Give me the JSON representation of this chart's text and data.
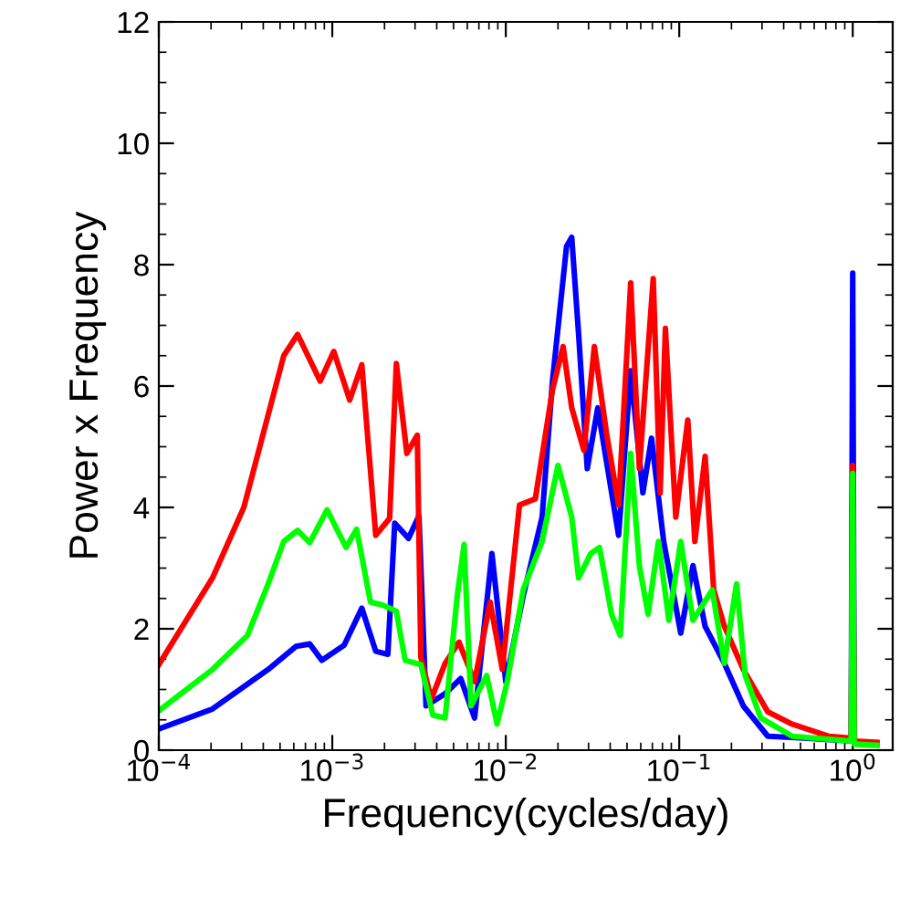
{
  "chart_data": {
    "type": "line",
    "xlabel": "Frequency(cycles/day)",
    "ylabel": "Power x Frequency",
    "log": "x",
    "xlim": [
      0.0001,
      1.7
    ],
    "ylim": [
      0,
      12
    ],
    "xticks": [
      {
        "value": 0.0001,
        "label": "10$^{−4}$"
      },
      {
        "value": 0.001,
        "label": "10$^{−3}$"
      },
      {
        "value": 0.01,
        "label": "10$^{−2}$"
      },
      {
        "value": 0.1,
        "label": "10$^{−1}$"
      },
      {
        "value": 1,
        "label": "10$^{0}$"
      }
    ],
    "yticks": [
      0,
      2,
      4,
      6,
      8,
      10,
      12
    ],
    "grid": false,
    "line_style": "solid",
    "marker": "none",
    "series": [
      {
        "color": "#0000ff",
        "x": [
          0.0001,
          0.000204,
          0.000427,
          0.000617,
          0.000741,
          0.000871,
          0.00117,
          0.00148,
          0.00178,
          0.00209,
          0.00229,
          0.00275,
          0.00316,
          0.00347,
          0.00447,
          0.0055,
          0.00661,
          0.00832,
          0.01,
          0.0126,
          0.0162,
          0.0186,
          0.0224,
          0.024,
          0.0263,
          0.0295,
          0.0339,
          0.0447,
          0.0525,
          0.0617,
          0.0692,
          0.0813,
          0.102,
          0.12,
          0.141,
          0.182,
          0.234,
          0.324,
          0.525,
          0.98,
          1.0,
          1.02,
          1.38
        ],
        "values": [
          0.35,
          0.68,
          1.33,
          1.71,
          1.75,
          1.48,
          1.73,
          2.34,
          1.63,
          1.58,
          3.74,
          3.49,
          3.86,
          0.73,
          0.93,
          1.18,
          0.53,
          3.24,
          1.13,
          2.54,
          3.84,
          6.09,
          8.3,
          8.45,
          6.85,
          4.64,
          5.64,
          3.54,
          6.25,
          4.24,
          5.14,
          3.44,
          1.93,
          3.04,
          2.04,
          1.43,
          0.73,
          0.23,
          0.2,
          0.15,
          7.86,
          0.12,
          0.1
        ]
      },
      {
        "color": "#ff0000",
        "x": [
          0.0001,
          0.000204,
          0.000309,
          0.000525,
          0.000631,
          0.000851,
          0.00102,
          0.00126,
          0.00148,
          0.00178,
          0.00214,
          0.00234,
          0.00269,
          0.00309,
          0.00324,
          0.00372,
          0.00447,
          0.00537,
          0.00661,
          0.00813,
          0.00955,
          0.012,
          0.0148,
          0.0186,
          0.0214,
          0.024,
          0.0282,
          0.0324,
          0.038,
          0.0447,
          0.0525,
          0.0589,
          0.0708,
          0.0776,
          0.0832,
          0.0955,
          0.112,
          0.123,
          0.141,
          0.158,
          0.182,
          0.234,
          0.324,
          0.447,
          0.724,
          0.98,
          1.0,
          1.02,
          1.38
        ],
        "values": [
          1.41,
          2.84,
          4.0,
          6.5,
          6.85,
          6.08,
          6.57,
          5.77,
          6.35,
          3.54,
          3.82,
          6.37,
          4.89,
          5.19,
          1.53,
          0.84,
          1.43,
          1.78,
          1.13,
          2.44,
          1.33,
          4.04,
          4.14,
          5.94,
          6.65,
          5.64,
          4.94,
          6.65,
          5.24,
          4.04,
          7.7,
          4.64,
          7.77,
          4.24,
          6.95,
          3.84,
          5.44,
          3.44,
          4.84,
          2.64,
          2.04,
          1.33,
          0.63,
          0.43,
          0.23,
          0.2,
          4.69,
          0.15,
          0.13
        ]
      },
      {
        "color": "#00ff00",
        "x": [
          0.0001,
          0.000204,
          0.000324,
          0.000427,
          0.000525,
          0.000631,
          0.000741,
          0.000933,
          0.0012,
          0.00138,
          0.00166,
          0.00195,
          0.00234,
          0.00263,
          0.00324,
          0.0038,
          0.00447,
          0.00525,
          0.00575,
          0.00631,
          0.00776,
          0.00891,
          0.0102,
          0.0126,
          0.0162,
          0.02,
          0.024,
          0.0263,
          0.0309,
          0.0347,
          0.0407,
          0.0457,
          0.0525,
          0.0589,
          0.0661,
          0.0759,
          0.0871,
          0.102,
          0.12,
          0.155,
          0.182,
          0.214,
          0.24,
          0.295,
          0.447,
          0.724,
          0.98,
          1.0,
          1.02,
          1.38
        ],
        "values": [
          0.65,
          1.33,
          1.89,
          2.74,
          3.44,
          3.62,
          3.42,
          3.96,
          3.34,
          3.64,
          2.44,
          2.39,
          2.29,
          1.48,
          1.41,
          0.58,
          0.53,
          2.54,
          3.39,
          0.73,
          1.23,
          0.43,
          1.13,
          2.64,
          3.44,
          4.69,
          3.84,
          2.84,
          3.24,
          3.34,
          2.24,
          1.89,
          4.89,
          3.04,
          2.24,
          3.44,
          2.14,
          3.44,
          2.14,
          2.64,
          1.43,
          2.74,
          1.23,
          0.53,
          0.23,
          0.18,
          0.15,
          4.56,
          0.1,
          0.08
        ]
      }
    ]
  }
}
